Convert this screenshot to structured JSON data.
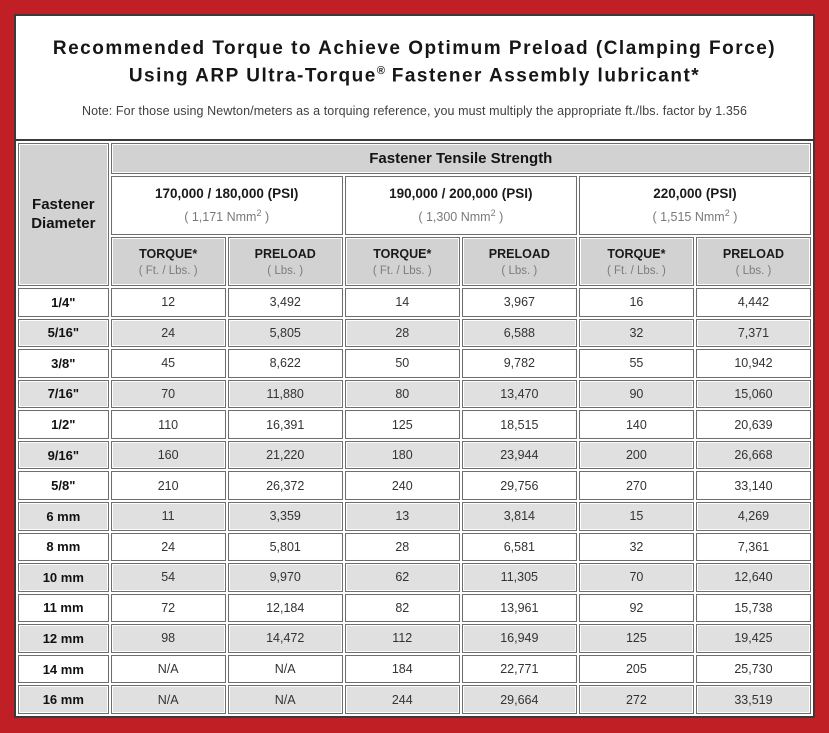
{
  "title": {
    "line1": "Recommended Torque to Achieve Optimum Preload (Clamping Force)",
    "line2_pre": "Using ARP Ultra-Torque",
    "line2_sup": "®",
    "line2_post": " Fastener Assembly lubricant*",
    "note": "Note: For those using Newton/meters as a torquing reference, you must multiply the appropriate ft./lbs. factor by 1.356"
  },
  "colors": {
    "frame_red": "#c01f25",
    "header_gray": "#d2d2d2",
    "row_alt_gray": "#e0e0e0",
    "border_dark": "#3a3a3a",
    "cell_border": "#6e6e6e"
  },
  "table": {
    "corner_line1": "Fastener",
    "corner_line2": "Diameter",
    "group_header": "Fastener Tensile Strength",
    "strength_groups": [
      {
        "psi": "170,000 / 180,000 (PSI)",
        "nmm_pre": "( 1,171 Nmm",
        "nmm_sup": "2",
        "nmm_post": " )"
      },
      {
        "psi": "190,000 / 200,000 (PSI)",
        "nmm_pre": "( 1,300 Nmm",
        "nmm_sup": "2",
        "nmm_post": " )"
      },
      {
        "psi": "220,000 (PSI)",
        "nmm_pre": "( 1,515 Nmm",
        "nmm_sup": "2",
        "nmm_post": " )"
      }
    ],
    "torque_header": {
      "line1": "TORQUE*",
      "line2": "( Ft. / Lbs. )"
    },
    "preload_header": {
      "line1": "PRELOAD",
      "line2": "( Lbs. )"
    },
    "rows": [
      {
        "dia": "1/4\"",
        "cells": [
          "12",
          "3,492",
          "14",
          "3,967",
          "16",
          "4,442"
        ]
      },
      {
        "dia": "5/16\"",
        "cells": [
          "24",
          "5,805",
          "28",
          "6,588",
          "32",
          "7,371"
        ]
      },
      {
        "dia": "3/8\"",
        "cells": [
          "45",
          "8,622",
          "50",
          "9,782",
          "55",
          "10,942"
        ]
      },
      {
        "dia": "7/16\"",
        "cells": [
          "70",
          "11,880",
          "80",
          "13,470",
          "90",
          "15,060"
        ]
      },
      {
        "dia": "1/2\"",
        "cells": [
          "110",
          "16,391",
          "125",
          "18,515",
          "140",
          "20,639"
        ]
      },
      {
        "dia": "9/16\"",
        "cells": [
          "160",
          "21,220",
          "180",
          "23,944",
          "200",
          "26,668"
        ]
      },
      {
        "dia": "5/8\"",
        "cells": [
          "210",
          "26,372",
          "240",
          "29,756",
          "270",
          "33,140"
        ]
      },
      {
        "dia": "6 mm",
        "cells": [
          "11",
          "3,359",
          "13",
          "3,814",
          "15",
          "4,269"
        ]
      },
      {
        "dia": "8 mm",
        "cells": [
          "24",
          "5,801",
          "28",
          "6,581",
          "32",
          "7,361"
        ]
      },
      {
        "dia": "10 mm",
        "cells": [
          "54",
          "9,970",
          "62",
          "11,305",
          "70",
          "12,640"
        ]
      },
      {
        "dia": "11 mm",
        "cells": [
          "72",
          "12,184",
          "82",
          "13,961",
          "92",
          "15,738"
        ]
      },
      {
        "dia": "12 mm",
        "cells": [
          "98",
          "14,472",
          "112",
          "16,949",
          "125",
          "19,425"
        ]
      },
      {
        "dia": "14 mm",
        "cells": [
          "N/A",
          "N/A",
          "184",
          "22,771",
          "205",
          "25,730"
        ]
      },
      {
        "dia": "16 mm",
        "cells": [
          "N/A",
          "N/A",
          "244",
          "29,664",
          "272",
          "33,519"
        ]
      }
    ]
  }
}
